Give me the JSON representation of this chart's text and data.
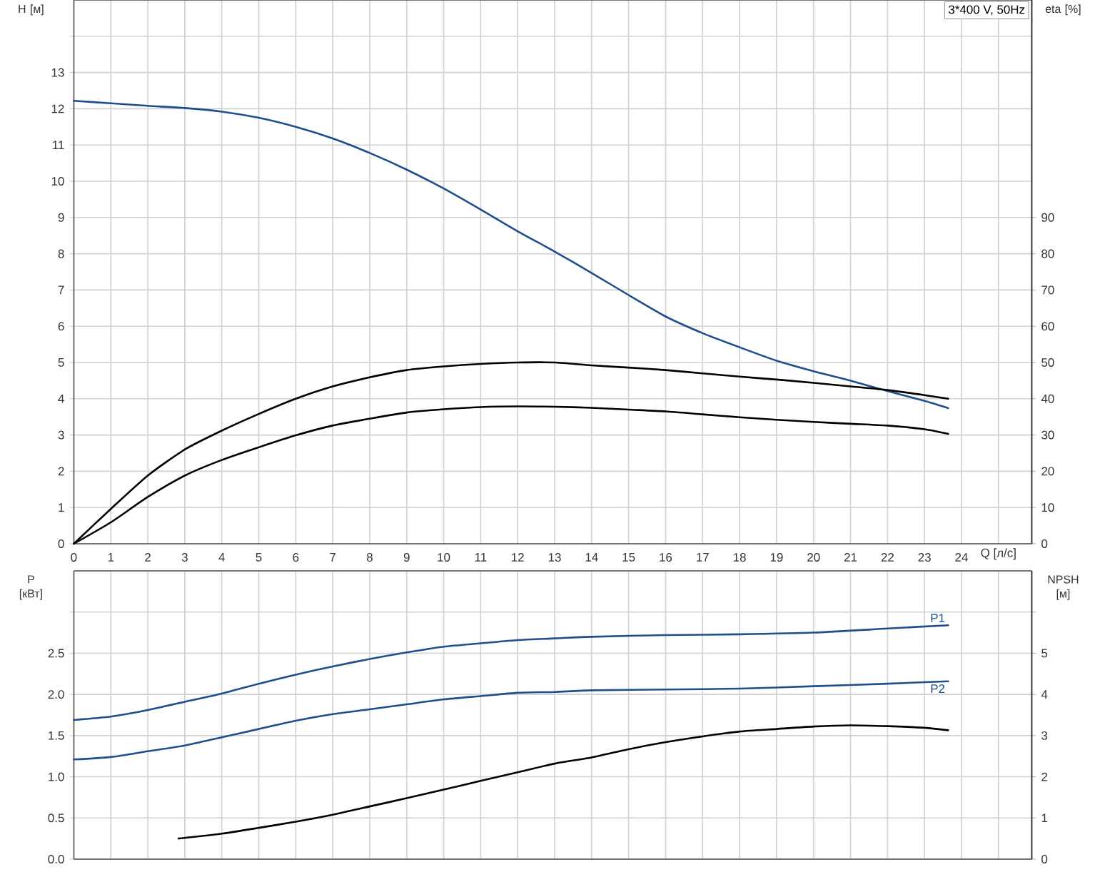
{
  "chart_data": [
    {
      "type": "line",
      "title": "3*400 V, 50Hz",
      "xlabel": "Q [л/с]",
      "ylabel": "H [м]",
      "y2label": "eta [%]",
      "xlim": [
        0,
        25.9
      ],
      "xticks": [
        0,
        1,
        2,
        3,
        4,
        5,
        6,
        7,
        8,
        9,
        10,
        11,
        12,
        13,
        14,
        15,
        16,
        17,
        18,
        19,
        20,
        21,
        22,
        23,
        24,
        {
          "value": 25,
          "label": null
        }
      ],
      "ylim": [
        0,
        15
      ],
      "yticks": [
        0,
        1,
        2,
        3,
        4,
        5,
        6,
        7,
        8,
        9,
        10,
        11,
        12,
        13,
        {
          "value": 14,
          "label": null
        }
      ],
      "y2lim": [
        0,
        150
      ],
      "y2ticks": [
        0,
        10,
        20,
        30,
        40,
        50,
        60,
        70,
        80,
        90
      ],
      "grid": true,
      "x": [
        0,
        1,
        2,
        3,
        4,
        5,
        6,
        7,
        8,
        9,
        10,
        11,
        12,
        13,
        14,
        15,
        16,
        17,
        18,
        19,
        20,
        21,
        22,
        23,
        23.64
      ],
      "series": [
        {
          "color": "#1f4e8c",
          "values": [
            12.22,
            12.15,
            12.08,
            12.02,
            11.92,
            11.75,
            11.5,
            11.18,
            10.78,
            10.32,
            9.8,
            9.22,
            8.62,
            8.06,
            7.47,
            6.86,
            6.27,
            5.81,
            5.42,
            5.05,
            4.76,
            4.5,
            4.21,
            3.94,
            3.74
          ]
        },
        {
          "color": "#000000",
          "axis": "y2",
          "values": [
            0,
            9.6,
            18.8,
            26,
            31.2,
            35.8,
            40,
            43.4,
            45.9,
            47.9,
            48.9,
            49.6,
            50,
            50,
            49.2,
            48.6,
            47.9,
            47,
            46.1,
            45.3,
            44.4,
            43.4,
            42.4,
            41,
            40
          ]
        },
        {
          "color": "#000000",
          "axis": "y2",
          "values": [
            0,
            5.9,
            12.9,
            18.8,
            23.1,
            26.6,
            29.9,
            32.6,
            34.5,
            36.2,
            37.1,
            37.7,
            37.9,
            37.8,
            37.5,
            37,
            36.5,
            35.7,
            34.9,
            34.2,
            33.6,
            33.1,
            32.6,
            31.6,
            30.3
          ]
        }
      ]
    },
    {
      "type": "line",
      "ylabel": "P [кВт]",
      "y2label": "NPSH [м]",
      "xlim": [
        0,
        25.9
      ],
      "xticks": [
        0,
        1,
        2,
        3,
        4,
        5,
        6,
        7,
        8,
        9,
        10,
        11,
        12,
        13,
        14,
        15,
        16,
        17,
        18,
        19,
        20,
        21,
        22,
        23,
        24,
        25
      ],
      "ylim": [
        0,
        3.5
      ],
      "yticks": [
        {
          "value": 0,
          "label": "0.0"
        },
        0.5,
        {
          "value": 1,
          "label": "1.0"
        },
        1.5,
        {
          "value": 2,
          "label": "2.0"
        },
        2.5,
        {
          "value": 3,
          "label": null
        }
      ],
      "y2lim": [
        0,
        7
      ],
      "y2ticks": [
        0,
        1,
        2,
        3,
        4,
        5,
        {
          "value": 6,
          "label": null
        }
      ],
      "grid": true,
      "tick_labels": "y",
      "x": [
        0,
        1,
        2,
        3,
        4,
        5,
        6,
        7,
        8,
        9,
        10,
        11,
        12,
        13,
        14,
        16,
        18,
        20,
        22,
        23.64
      ],
      "series": [
        {
          "name": "P1",
          "color": "#1f4e8c",
          "values": [
            1.69,
            1.73,
            1.81,
            1.91,
            2.01,
            2.13,
            2.24,
            2.34,
            2.43,
            2.51,
            2.58,
            2.62,
            2.66,
            2.68,
            2.7,
            2.72,
            2.73,
            2.75,
            2.8,
            2.84
          ]
        },
        {
          "name": "P2",
          "color": "#1f4e8c",
          "values": [
            1.21,
            1.24,
            1.31,
            1.38,
            1.48,
            1.58,
            1.68,
            1.76,
            1.82,
            1.88,
            1.94,
            1.98,
            2.02,
            2.03,
            2.05,
            2.06,
            2.07,
            2.1,
            2.13,
            2.16
          ]
        },
        {
          "color": "#000000",
          "axis": "y2",
          "x": [
            2.83,
            4,
            5,
            6,
            7,
            8,
            9,
            10,
            11,
            12,
            13,
            14,
            15,
            16,
            17,
            18,
            19,
            20,
            21,
            22,
            23,
            23.64
          ],
          "values": [
            0.5,
            0.62,
            0.76,
            0.91,
            1.08,
            1.28,
            1.48,
            1.69,
            1.9,
            2.11,
            2.32,
            2.47,
            2.67,
            2.84,
            2.98,
            3.1,
            3.16,
            3.22,
            3.25,
            3.23,
            3.19,
            3.13
          ]
        }
      ]
    }
  ]
}
